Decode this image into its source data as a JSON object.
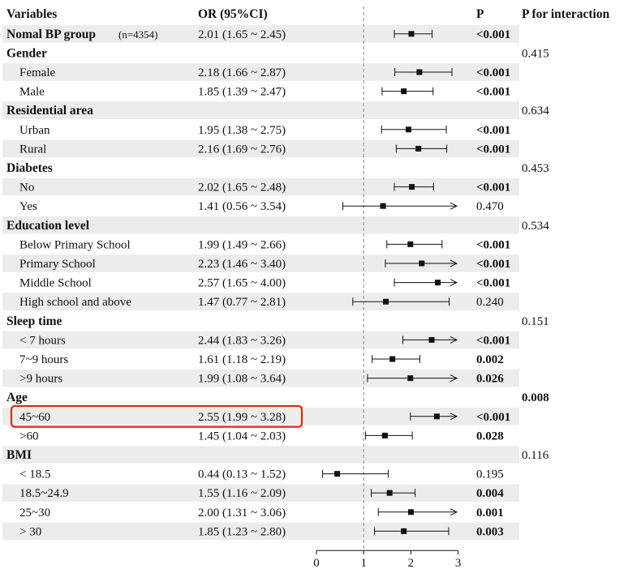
{
  "chart_data": {
    "type": "forest",
    "columns": {
      "variable": "Variables",
      "or": "OR (95%CI)",
      "p": "P",
      "p_interaction": "P for interaction"
    },
    "reference_line": 1,
    "x_axis": {
      "range": [
        0,
        3
      ],
      "ticks": [
        "0",
        "1",
        "2",
        "3"
      ]
    },
    "rows": [
      {
        "label": "Nomal BP group",
        "note": "(n=4354)",
        "or_text": "2.01 (1.65 ~ 2.45)",
        "or": 2.01,
        "lo": 1.65,
        "hi": 2.45,
        "p": "<0.001",
        "p_bold": true,
        "header": true,
        "shade": true
      },
      {
        "label": "Gender",
        "header": true,
        "p_int": "0.415",
        "shade": false
      },
      {
        "label": "Female",
        "or_text": "2.18 (1.66 ~ 2.87)",
        "or": 2.18,
        "lo": 1.66,
        "hi": 2.87,
        "p": "<0.001",
        "p_bold": true,
        "shade": true
      },
      {
        "label": "Male",
        "or_text": "1.85 (1.39 ~ 2.47)",
        "or": 1.85,
        "lo": 1.39,
        "hi": 2.47,
        "p": "<0.001",
        "p_bold": true,
        "shade": false
      },
      {
        "label": "Residential area",
        "header": true,
        "p_int": "0.634",
        "shade": true
      },
      {
        "label": "Urban",
        "or_text": "1.95 (1.38 ~ 2.75)",
        "or": 1.95,
        "lo": 1.38,
        "hi": 2.75,
        "p": "<0.001",
        "p_bold": true,
        "shade": false
      },
      {
        "label": "Rural",
        "or_text": "2.16 (1.69 ~ 2.76)",
        "or": 2.16,
        "lo": 1.69,
        "hi": 2.76,
        "p": "<0.001",
        "p_bold": true,
        "shade": true
      },
      {
        "label": "Diabetes",
        "header": true,
        "p_int": "0.453",
        "shade": false
      },
      {
        "label": "No",
        "or_text": "2.02 (1.65 ~ 2.48)",
        "or": 2.02,
        "lo": 1.65,
        "hi": 2.48,
        "p": "<0.001",
        "p_bold": true,
        "shade": true
      },
      {
        "label": "Yes",
        "or_text": "1.41 (0.56 ~ 3.54)",
        "or": 1.41,
        "lo": 0.56,
        "hi": 3.54,
        "p": "0.470",
        "p_bold": false,
        "shade": false
      },
      {
        "label": "Education level",
        "header": true,
        "p_int": "0.534",
        "shade": true
      },
      {
        "label": "Below Primary School",
        "or_text": "1.99 (1.49 ~ 2.66)",
        "or": 1.99,
        "lo": 1.49,
        "hi": 2.66,
        "p": "<0.001",
        "p_bold": true,
        "shade": false
      },
      {
        "label": "Primary School",
        "or_text": "2.23 (1.46 ~ 3.40)",
        "or": 2.23,
        "lo": 1.46,
        "hi": 3.4,
        "p": "<0.001",
        "p_bold": true,
        "shade": true
      },
      {
        "label": "Middle School",
        "or_text": "2.57 (1.65 ~ 4.00)",
        "or": 2.57,
        "lo": 1.65,
        "hi": 4.0,
        "p": "<0.001",
        "p_bold": true,
        "shade": false
      },
      {
        "label": "High school and above",
        "or_text": "1.47 (0.77 ~ 2.81)",
        "or": 1.47,
        "lo": 0.77,
        "hi": 2.81,
        "p": "0.240",
        "p_bold": false,
        "shade": true
      },
      {
        "label": "Sleep time",
        "header": true,
        "p_int": "0.151",
        "shade": false
      },
      {
        "label": "< 7 hours",
        "or_text": "2.44 (1.83 ~ 3.26)",
        "or": 2.44,
        "lo": 1.83,
        "hi": 3.26,
        "p": "<0.001",
        "p_bold": true,
        "shade": true
      },
      {
        "label": "7~9 hours",
        "or_text": "1.61 (1.18 ~ 2.19)",
        "or": 1.61,
        "lo": 1.18,
        "hi": 2.19,
        "p": "0.002",
        "p_bold": true,
        "shade": false
      },
      {
        "label": ">9 hours",
        "or_text": "1.99 (1.08 ~ 3.64)",
        "or": 1.99,
        "lo": 1.08,
        "hi": 3.64,
        "p": "0.026",
        "p_bold": true,
        "shade": true
      },
      {
        "label": "Age",
        "header": true,
        "p_int": "0.008",
        "p_int_bold": true,
        "shade": false
      },
      {
        "label": "45~60",
        "or_text": "2.55 (1.99 ~ 3.28)",
        "or": 2.55,
        "lo": 1.99,
        "hi": 3.28,
        "p": "<0.001",
        "p_bold": true,
        "shade": true,
        "highlight": true
      },
      {
        "label": ">60",
        "or_text": "1.45 (1.04 ~ 2.03)",
        "or": 1.45,
        "lo": 1.04,
        "hi": 2.03,
        "p": "0.028",
        "p_bold": true,
        "shade": false
      },
      {
        "label": "BMI",
        "header": true,
        "p_int": "0.116",
        "shade": true
      },
      {
        "label": "< 18.5",
        "or_text": "0.44 (0.13 ~ 1.52)",
        "or": 0.44,
        "lo": 0.13,
        "hi": 1.52,
        "p": "0.195",
        "p_bold": false,
        "shade": false
      },
      {
        "label": "18.5~24.9",
        "or_text": "1.55 (1.16 ~ 2.09)",
        "or": 1.55,
        "lo": 1.16,
        "hi": 2.09,
        "p": "0.004",
        "p_bold": true,
        "shade": true
      },
      {
        "label": "25~30",
        "or_text": "2.00 (1.31 ~ 3.06)",
        "or": 2.0,
        "lo": 1.31,
        "hi": 3.06,
        "p": "0.001",
        "p_bold": true,
        "shade": false
      },
      {
        "label": "> 30",
        "or_text": "1.85 (1.23 ~ 2.80)",
        "or": 1.85,
        "lo": 1.23,
        "hi": 2.8,
        "p": "0.003",
        "p_bold": true,
        "shade": true
      }
    ],
    "colors": {
      "shade": "#ececec",
      "highlight": "#e0241b",
      "ink": "#111111",
      "refline": "#888888"
    }
  }
}
